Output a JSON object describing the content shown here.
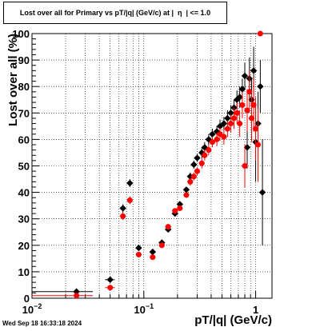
{
  "title": "Lost over all for Primary vs pT/|q| (GeV/c) at |  η  | <= 1.0",
  "timestamp": "Wed Sep 18 16:33:18 2024",
  "chart_data": {
    "type": "scatter",
    "xlabel": "pT/|q| (GeV/c)",
    "ylabel": "Lost over all (%)",
    "xscale": "log",
    "xlim": [
      0.01,
      1.4
    ],
    "ylim": [
      0,
      100
    ],
    "grid": true,
    "x_tick_labels": [
      {
        "value": 0.01,
        "base": "10",
        "exp": "−2"
      },
      {
        "value": 0.1,
        "base": "10",
        "exp": "−1"
      },
      {
        "value": 1,
        "base": "1",
        "exp": ""
      }
    ],
    "y_ticks": [
      0,
      10,
      20,
      30,
      40,
      50,
      60,
      70,
      80,
      90,
      100
    ],
    "series": [
      {
        "color": "#000000",
        "marker": "diamond",
        "points": [
          {
            "x": 0.025,
            "y": 2.5,
            "xerr": [
              0.015,
              0.01
            ]
          },
          {
            "x": 0.05,
            "y": 7,
            "xerr": [
              0.005,
              0.005
            ]
          },
          {
            "x": 0.065,
            "y": 34,
            "yerr": 1.5
          },
          {
            "x": 0.075,
            "y": 43.5,
            "yerr": 1.5
          },
          {
            "x": 0.09,
            "y": 19,
            "yerr": 1
          },
          {
            "x": 0.12,
            "y": 17.5,
            "yerr": 1
          },
          {
            "x": 0.145,
            "y": 21,
            "yerr": 1
          },
          {
            "x": 0.165,
            "y": 26,
            "yerr": 1
          },
          {
            "x": 0.19,
            "y": 32,
            "yerr": 1
          },
          {
            "x": 0.21,
            "y": 35.5,
            "yerr": 1
          },
          {
            "x": 0.24,
            "y": 41,
            "yerr": 1
          },
          {
            "x": 0.26,
            "y": 46,
            "yerr": 1.5
          },
          {
            "x": 0.28,
            "y": 50.5,
            "yerr": 1.5
          },
          {
            "x": 0.3,
            "y": 53,
            "yerr": 1.5
          },
          {
            "x": 0.33,
            "y": 55,
            "yerr": 2
          },
          {
            "x": 0.35,
            "y": 57,
            "yerr": 2
          },
          {
            "x": 0.38,
            "y": 60,
            "yerr": 2
          },
          {
            "x": 0.41,
            "y": 62,
            "yerr": 2
          },
          {
            "x": 0.45,
            "y": 63,
            "yerr": 2
          },
          {
            "x": 0.48,
            "y": 65,
            "yerr": 2.5
          },
          {
            "x": 0.52,
            "y": 66,
            "yerr": 2.5
          },
          {
            "x": 0.56,
            "y": 68,
            "yerr": 3
          },
          {
            "x": 0.6,
            "y": 70,
            "yerr": 3
          },
          {
            "x": 0.64,
            "y": 72,
            "yerr": 3
          },
          {
            "x": 0.68,
            "y": 75,
            "yerr": 3.5
          },
          {
            "x": 0.72,
            "y": 76,
            "yerr": 4
          },
          {
            "x": 0.76,
            "y": 79,
            "yerr": 4
          },
          {
            "x": 0.8,
            "y": 84,
            "yerr": 5
          },
          {
            "x": 0.84,
            "y": 57,
            "yerr": 8
          },
          {
            "x": 0.88,
            "y": 83,
            "yerr": 8
          },
          {
            "x": 0.92,
            "y": 75,
            "yerr": 8
          },
          {
            "x": 0.96,
            "y": 86,
            "yerr": 9
          },
          {
            "x": 1.0,
            "y": 59,
            "yerr": 15
          },
          {
            "x": 1.05,
            "y": 66,
            "yerr": 12
          },
          {
            "x": 1.1,
            "y": 80,
            "yerr": 10
          },
          {
            "x": 1.15,
            "y": 40,
            "yerr": 20
          }
        ]
      },
      {
        "color": "#ff0000",
        "marker": "circle",
        "points": [
          {
            "x": 0.025,
            "y": 1,
            "xerr": [
              0.015,
              0.01
            ]
          },
          {
            "x": 0.05,
            "y": 4,
            "xerr": [
              0.005,
              0.005
            ]
          },
          {
            "x": 0.065,
            "y": 31,
            "yerr": 1.5
          },
          {
            "x": 0.075,
            "y": 37,
            "yerr": 1.5
          },
          {
            "x": 0.09,
            "y": 16.5,
            "yerr": 1
          },
          {
            "x": 0.12,
            "y": 15.5,
            "yerr": 1
          },
          {
            "x": 0.145,
            "y": 20,
            "yerr": 1
          },
          {
            "x": 0.165,
            "y": 27,
            "yerr": 1
          },
          {
            "x": 0.19,
            "y": 33,
            "yerr": 1
          },
          {
            "x": 0.21,
            "y": 34,
            "yerr": 1
          },
          {
            "x": 0.24,
            "y": 39,
            "yerr": 1
          },
          {
            "x": 0.26,
            "y": 44,
            "yerr": 1.5
          },
          {
            "x": 0.28,
            "y": 46,
            "yerr": 1.5
          },
          {
            "x": 0.3,
            "y": 48,
            "yerr": 1.5
          },
          {
            "x": 0.33,
            "y": 51,
            "yerr": 2
          },
          {
            "x": 0.35,
            "y": 54,
            "yerr": 2
          },
          {
            "x": 0.38,
            "y": 56,
            "yerr": 2
          },
          {
            "x": 0.41,
            "y": 59,
            "yerr": 2
          },
          {
            "x": 0.45,
            "y": 60,
            "yerr": 2.5
          },
          {
            "x": 0.48,
            "y": 62,
            "yerr": 2.5
          },
          {
            "x": 0.52,
            "y": 61,
            "yerr": 3
          },
          {
            "x": 0.56,
            "y": 64,
            "yerr": 3
          },
          {
            "x": 0.6,
            "y": 66,
            "yerr": 3.5
          },
          {
            "x": 0.64,
            "y": 68,
            "yerr": 4
          },
          {
            "x": 0.68,
            "y": 70,
            "yerr": 4
          },
          {
            "x": 0.72,
            "y": 66,
            "yerr": 5
          },
          {
            "x": 0.76,
            "y": 73,
            "yerr": 5
          },
          {
            "x": 0.8,
            "y": 50,
            "yerr": 8
          },
          {
            "x": 0.84,
            "y": 71,
            "yerr": 8
          },
          {
            "x": 0.88,
            "y": 78,
            "yerr": 8
          },
          {
            "x": 0.92,
            "y": 68,
            "yerr": 9
          },
          {
            "x": 0.96,
            "y": 73,
            "yerr": 10
          },
          {
            "x": 1.0,
            "y": 64,
            "yerr": 12
          },
          {
            "x": 1.05,
            "y": 58,
            "yerr": 14
          },
          {
            "x": 1.1,
            "y": 100,
            "yerr": 0
          }
        ]
      }
    ]
  }
}
